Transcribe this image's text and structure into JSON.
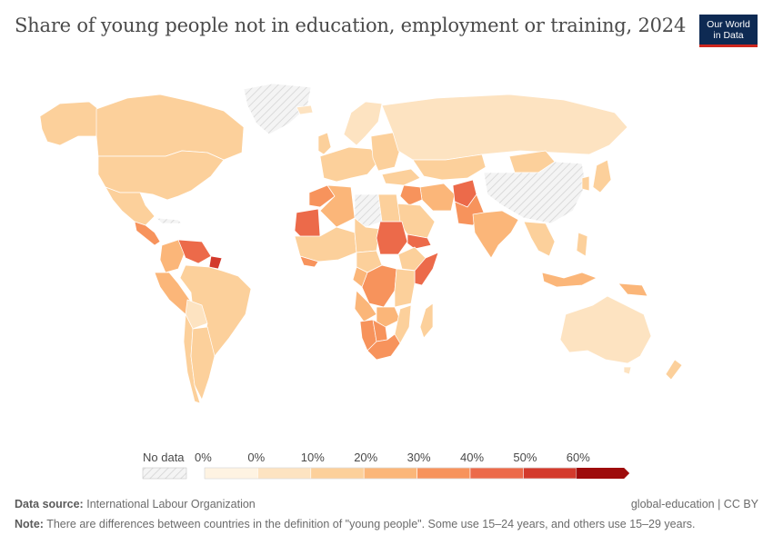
{
  "header": {
    "title": "Share of young people not in education, employment or training, 2024",
    "logo_line1": "Our World",
    "logo_line2": "in Data"
  },
  "legend": {
    "no_data_label": "No data",
    "tick_labels": [
      "0%",
      "0%",
      "10%",
      "20%",
      "30%",
      "40%",
      "50%",
      "60%"
    ],
    "bin_colors": [
      "#fef3e2",
      "#fde3c1",
      "#fcd09b",
      "#fbb679",
      "#f7935c",
      "#ec6a4a",
      "#d33a2c",
      "#9e0b0b"
    ]
  },
  "footer": {
    "source_label": "Data source:",
    "source_value": "International Labour Organization",
    "note_label": "Note:",
    "note_value": "There are differences between countries in the definition of \"young people\". Some use 15–24 years, and others use 15–29 years.",
    "license": "global-education | CC BY"
  },
  "map_data": {
    "type": "choropleth",
    "regions": [
      {
        "name": "Canada",
        "color": "#fcd09b"
      },
      {
        "name": "United States",
        "color": "#fcd09b"
      },
      {
        "name": "Mexico",
        "color": "#fcd09b"
      },
      {
        "name": "Alaska",
        "color": "#fcd09b"
      },
      {
        "name": "Greenland",
        "color": "no-data"
      },
      {
        "name": "Central America",
        "color": "#f7935c"
      },
      {
        "name": "Venezuela",
        "color": "#ec6a4a"
      },
      {
        "name": "Colombia",
        "color": "#fbb679"
      },
      {
        "name": "Peru",
        "color": "#fbb679"
      },
      {
        "name": "Brazil",
        "color": "#fcd09b"
      },
      {
        "name": "Bolivia",
        "color": "#fde3c1"
      },
      {
        "name": "Argentina",
        "color": "#fcd09b"
      },
      {
        "name": "Chile",
        "color": "#fcd09b"
      },
      {
        "name": "Europe",
        "color": "#fcd09b"
      },
      {
        "name": "Russia",
        "color": "#fde3c1"
      },
      {
        "name": "Kazakhstan",
        "color": "#fcd09b"
      },
      {
        "name": "Mongolia",
        "color": "#fcd09b"
      },
      {
        "name": "China",
        "color": "no-data"
      },
      {
        "name": "Mauritania",
        "color": "#ec6a4a"
      },
      {
        "name": "Algeria",
        "color": "#fbb679"
      },
      {
        "name": "Libya",
        "color": "no-data"
      },
      {
        "name": "Sudan",
        "color": "#ec6a4a"
      },
      {
        "name": "Somalia",
        "color": "#ec6a4a"
      },
      {
        "name": "Yemen",
        "color": "#ec6a4a"
      },
      {
        "name": "Afghanistan",
        "color": "#ec6a4a"
      },
      {
        "name": "Pakistan",
        "color": "#f7935c"
      },
      {
        "name": "India",
        "color": "#fbb679"
      },
      {
        "name": "Iran",
        "color": "#fbb679"
      },
      {
        "name": "Saudi Arabia",
        "color": "#fcd09b"
      },
      {
        "name": "DR Congo",
        "color": "#f7935c"
      },
      {
        "name": "Angola",
        "color": "#fbb679"
      },
      {
        "name": "South Africa",
        "color": "#f7935c"
      },
      {
        "name": "Namibia",
        "color": "#f7935c"
      },
      {
        "name": "Botswana",
        "color": "#f7935c"
      },
      {
        "name": "Madagascar",
        "color": "#fcd09b"
      },
      {
        "name": "Australia",
        "color": "#fde3c1"
      },
      {
        "name": "Indonesia",
        "color": "#fbb679"
      },
      {
        "name": "Papua New Guinea",
        "color": "#fbb679"
      },
      {
        "name": "Japan",
        "color": "#fcd09b"
      },
      {
        "name": "New Zealand",
        "color": "#fcd09b"
      }
    ]
  }
}
